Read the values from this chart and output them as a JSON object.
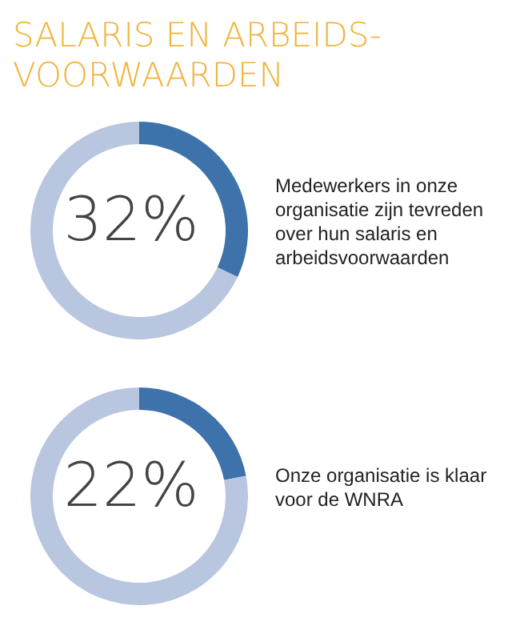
{
  "chart_data": [
    {
      "type": "donut",
      "title": "SALARIS EN ARBEIDS-VOORWAARDEN",
      "categories": [
        null,
        null
      ],
      "values": [
        32,
        68
      ],
      "colors": [
        "#3e72ab",
        "#b9c6df"
      ],
      "annotations": [
        "32%",
        "Medewerkers in onze organisatie zijn tevreden over hun salaris en arbeidsvoorwaarden"
      ]
    },
    {
      "type": "donut",
      "categories": [
        null,
        null
      ],
      "values": [
        22,
        78
      ],
      "colors": [
        "#3e72ab",
        "#b9c6df"
      ],
      "annotations": [
        "22%",
        "Onze organisatie is klaar voor de WNRA"
      ]
    }
  ]
}
